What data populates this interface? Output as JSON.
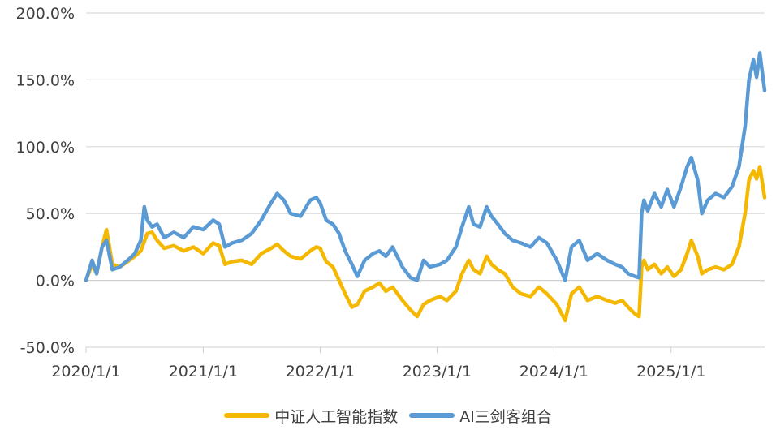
{
  "chart_data": {
    "type": "line",
    "title": "",
    "xlabel": "",
    "ylabel": "",
    "x_range": [
      "2020-01-01",
      "2025-10-20"
    ],
    "x_ticks": [
      "2020/1/1",
      "2021/1/1",
      "2022/1/1",
      "2023/1/1",
      "2024/1/1",
      "2025/1/1"
    ],
    "x_tick_dates": [
      "2020-01-01",
      "2021-01-01",
      "2022-01-01",
      "2023-01-01",
      "2024-01-01",
      "2025-01-01"
    ],
    "ylim": [
      -50,
      200
    ],
    "y_ticks": [
      -50,
      0,
      50,
      100,
      150,
      200
    ],
    "y_tick_labels": [
      "-50.0%",
      "0.0%",
      "50.0%",
      "100.0%",
      "150.0%",
      "200.0%"
    ],
    "grid": true,
    "legend_position": "bottom",
    "series": [
      {
        "name": "中证人工智能指数",
        "color": "#F5B800",
        "points": [
          [
            "2020-01-01",
            0
          ],
          [
            "2020-01-20",
            12
          ],
          [
            "2020-02-03",
            5
          ],
          [
            "2020-02-20",
            25
          ],
          [
            "2020-03-05",
            38
          ],
          [
            "2020-03-23",
            12
          ],
          [
            "2020-04-15",
            10
          ],
          [
            "2020-05-10",
            14
          ],
          [
            "2020-06-01",
            18
          ],
          [
            "2020-06-20",
            22
          ],
          [
            "2020-07-10",
            35
          ],
          [
            "2020-07-25",
            36
          ],
          [
            "2020-08-10",
            30
          ],
          [
            "2020-09-01",
            24
          ],
          [
            "2020-10-01",
            26
          ],
          [
            "2020-11-01",
            22
          ],
          [
            "2020-12-01",
            25
          ],
          [
            "2021-01-01",
            20
          ],
          [
            "2021-02-01",
            28
          ],
          [
            "2021-02-20",
            26
          ],
          [
            "2021-03-10",
            12
          ],
          [
            "2021-04-01",
            14
          ],
          [
            "2021-05-01",
            15
          ],
          [
            "2021-06-01",
            12
          ],
          [
            "2021-07-01",
            20
          ],
          [
            "2021-08-01",
            24
          ],
          [
            "2021-08-20",
            27
          ],
          [
            "2021-09-10",
            22
          ],
          [
            "2021-10-01",
            18
          ],
          [
            "2021-11-01",
            16
          ],
          [
            "2021-12-01",
            22
          ],
          [
            "2021-12-20",
            25
          ],
          [
            "2022-01-01",
            24
          ],
          [
            "2022-01-20",
            14
          ],
          [
            "2022-02-10",
            10
          ],
          [
            "2022-03-01",
            0
          ],
          [
            "2022-03-20",
            -10
          ],
          [
            "2022-04-10",
            -20
          ],
          [
            "2022-04-27",
            -18
          ],
          [
            "2022-05-20",
            -8
          ],
          [
            "2022-06-15",
            -5
          ],
          [
            "2022-07-05",
            -2
          ],
          [
            "2022-07-25",
            -8
          ],
          [
            "2022-08-15",
            -5
          ],
          [
            "2022-09-15",
            -15
          ],
          [
            "2022-10-10",
            -22
          ],
          [
            "2022-10-31",
            -27
          ],
          [
            "2022-11-20",
            -18
          ],
          [
            "2022-12-10",
            -15
          ],
          [
            "2023-01-10",
            -12
          ],
          [
            "2023-02-01",
            -15
          ],
          [
            "2023-03-01",
            -8
          ],
          [
            "2023-03-20",
            5
          ],
          [
            "2023-04-10",
            15
          ],
          [
            "2023-04-25",
            8
          ],
          [
            "2023-05-15",
            5
          ],
          [
            "2023-06-05",
            18
          ],
          [
            "2023-06-20",
            12
          ],
          [
            "2023-07-10",
            8
          ],
          [
            "2023-08-01",
            5
          ],
          [
            "2023-08-25",
            -5
          ],
          [
            "2023-09-20",
            -10
          ],
          [
            "2023-10-20",
            -12
          ],
          [
            "2023-11-15",
            -5
          ],
          [
            "2023-12-10",
            -10
          ],
          [
            "2024-01-10",
            -18
          ],
          [
            "2024-02-05",
            -30
          ],
          [
            "2024-02-25",
            -10
          ],
          [
            "2024-03-20",
            -5
          ],
          [
            "2024-04-15",
            -15
          ],
          [
            "2024-05-15",
            -12
          ],
          [
            "2024-06-15",
            -15
          ],
          [
            "2024-07-10",
            -17
          ],
          [
            "2024-08-01",
            -15
          ],
          [
            "2024-08-20",
            -20
          ],
          [
            "2024-09-10",
            -25
          ],
          [
            "2024-09-23",
            -27
          ],
          [
            "2024-10-01",
            10
          ],
          [
            "2024-10-08",
            15
          ],
          [
            "2024-10-20",
            8
          ],
          [
            "2024-11-10",
            12
          ],
          [
            "2024-12-01",
            5
          ],
          [
            "2024-12-20",
            10
          ],
          [
            "2025-01-10",
            3
          ],
          [
            "2025-02-01",
            8
          ],
          [
            "2025-02-20",
            20
          ],
          [
            "2025-03-05",
            30
          ],
          [
            "2025-03-25",
            18
          ],
          [
            "2025-04-07",
            5
          ],
          [
            "2025-04-25",
            8
          ],
          [
            "2025-05-20",
            10
          ],
          [
            "2025-06-15",
            8
          ],
          [
            "2025-07-10",
            12
          ],
          [
            "2025-08-01",
            25
          ],
          [
            "2025-08-20",
            50
          ],
          [
            "2025-09-01",
            75
          ],
          [
            "2025-09-15",
            82
          ],
          [
            "2025-09-25",
            76
          ],
          [
            "2025-10-05",
            85
          ],
          [
            "2025-10-20",
            62
          ]
        ]
      },
      {
        "name": "AI三剑客组合",
        "color": "#5B9BD5",
        "points": [
          [
            "2020-01-01",
            0
          ],
          [
            "2020-01-20",
            15
          ],
          [
            "2020-02-03",
            5
          ],
          [
            "2020-02-20",
            25
          ],
          [
            "2020-03-05",
            30
          ],
          [
            "2020-03-23",
            8
          ],
          [
            "2020-04-15",
            10
          ],
          [
            "2020-05-10",
            15
          ],
          [
            "2020-06-01",
            20
          ],
          [
            "2020-06-20",
            30
          ],
          [
            "2020-07-01",
            55
          ],
          [
            "2020-07-10",
            45
          ],
          [
            "2020-07-25",
            40
          ],
          [
            "2020-08-10",
            42
          ],
          [
            "2020-09-01",
            32
          ],
          [
            "2020-10-01",
            36
          ],
          [
            "2020-11-01",
            32
          ],
          [
            "2020-12-01",
            40
          ],
          [
            "2021-01-01",
            38
          ],
          [
            "2021-02-01",
            45
          ],
          [
            "2021-02-20",
            42
          ],
          [
            "2021-03-10",
            25
          ],
          [
            "2021-04-01",
            28
          ],
          [
            "2021-05-01",
            30
          ],
          [
            "2021-06-01",
            35
          ],
          [
            "2021-07-01",
            45
          ],
          [
            "2021-08-01",
            58
          ],
          [
            "2021-08-20",
            65
          ],
          [
            "2021-09-10",
            60
          ],
          [
            "2021-10-01",
            50
          ],
          [
            "2021-11-01",
            48
          ],
          [
            "2021-12-01",
            60
          ],
          [
            "2021-12-20",
            62
          ],
          [
            "2022-01-01",
            58
          ],
          [
            "2022-01-20",
            45
          ],
          [
            "2022-02-10",
            42
          ],
          [
            "2022-03-01",
            35
          ],
          [
            "2022-03-20",
            22
          ],
          [
            "2022-04-10",
            12
          ],
          [
            "2022-04-27",
            3
          ],
          [
            "2022-05-20",
            15
          ],
          [
            "2022-06-15",
            20
          ],
          [
            "2022-07-05",
            22
          ],
          [
            "2022-07-25",
            18
          ],
          [
            "2022-08-15",
            25
          ],
          [
            "2022-09-15",
            10
          ],
          [
            "2022-10-10",
            2
          ],
          [
            "2022-10-31",
            0
          ],
          [
            "2022-11-20",
            15
          ],
          [
            "2022-12-10",
            10
          ],
          [
            "2023-01-10",
            12
          ],
          [
            "2023-02-01",
            15
          ],
          [
            "2023-03-01",
            25
          ],
          [
            "2023-03-20",
            40
          ],
          [
            "2023-04-10",
            55
          ],
          [
            "2023-04-25",
            42
          ],
          [
            "2023-05-15",
            40
          ],
          [
            "2023-06-05",
            55
          ],
          [
            "2023-06-20",
            48
          ],
          [
            "2023-07-10",
            42
          ],
          [
            "2023-08-01",
            35
          ],
          [
            "2023-08-25",
            30
          ],
          [
            "2023-09-20",
            28
          ],
          [
            "2023-10-20",
            25
          ],
          [
            "2023-11-15",
            32
          ],
          [
            "2023-12-10",
            28
          ],
          [
            "2024-01-10",
            15
          ],
          [
            "2024-02-05",
            0
          ],
          [
            "2024-02-25",
            25
          ],
          [
            "2024-03-20",
            30
          ],
          [
            "2024-04-15",
            15
          ],
          [
            "2024-05-15",
            20
          ],
          [
            "2024-06-15",
            15
          ],
          [
            "2024-07-10",
            12
          ],
          [
            "2024-08-01",
            10
          ],
          [
            "2024-08-20",
            5
          ],
          [
            "2024-09-10",
            3
          ],
          [
            "2024-09-23",
            2
          ],
          [
            "2024-10-01",
            50
          ],
          [
            "2024-10-08",
            60
          ],
          [
            "2024-10-20",
            52
          ],
          [
            "2024-11-10",
            65
          ],
          [
            "2024-12-01",
            55
          ],
          [
            "2024-12-20",
            68
          ],
          [
            "2025-01-10",
            55
          ],
          [
            "2025-02-01",
            70
          ],
          [
            "2025-02-20",
            85
          ],
          [
            "2025-03-05",
            92
          ],
          [
            "2025-03-25",
            75
          ],
          [
            "2025-04-07",
            50
          ],
          [
            "2025-04-25",
            60
          ],
          [
            "2025-05-20",
            65
          ],
          [
            "2025-06-15",
            62
          ],
          [
            "2025-07-10",
            70
          ],
          [
            "2025-08-01",
            85
          ],
          [
            "2025-08-20",
            115
          ],
          [
            "2025-09-01",
            150
          ],
          [
            "2025-09-15",
            165
          ],
          [
            "2025-09-25",
            152
          ],
          [
            "2025-10-05",
            170
          ],
          [
            "2025-10-20",
            142
          ]
        ]
      }
    ]
  }
}
